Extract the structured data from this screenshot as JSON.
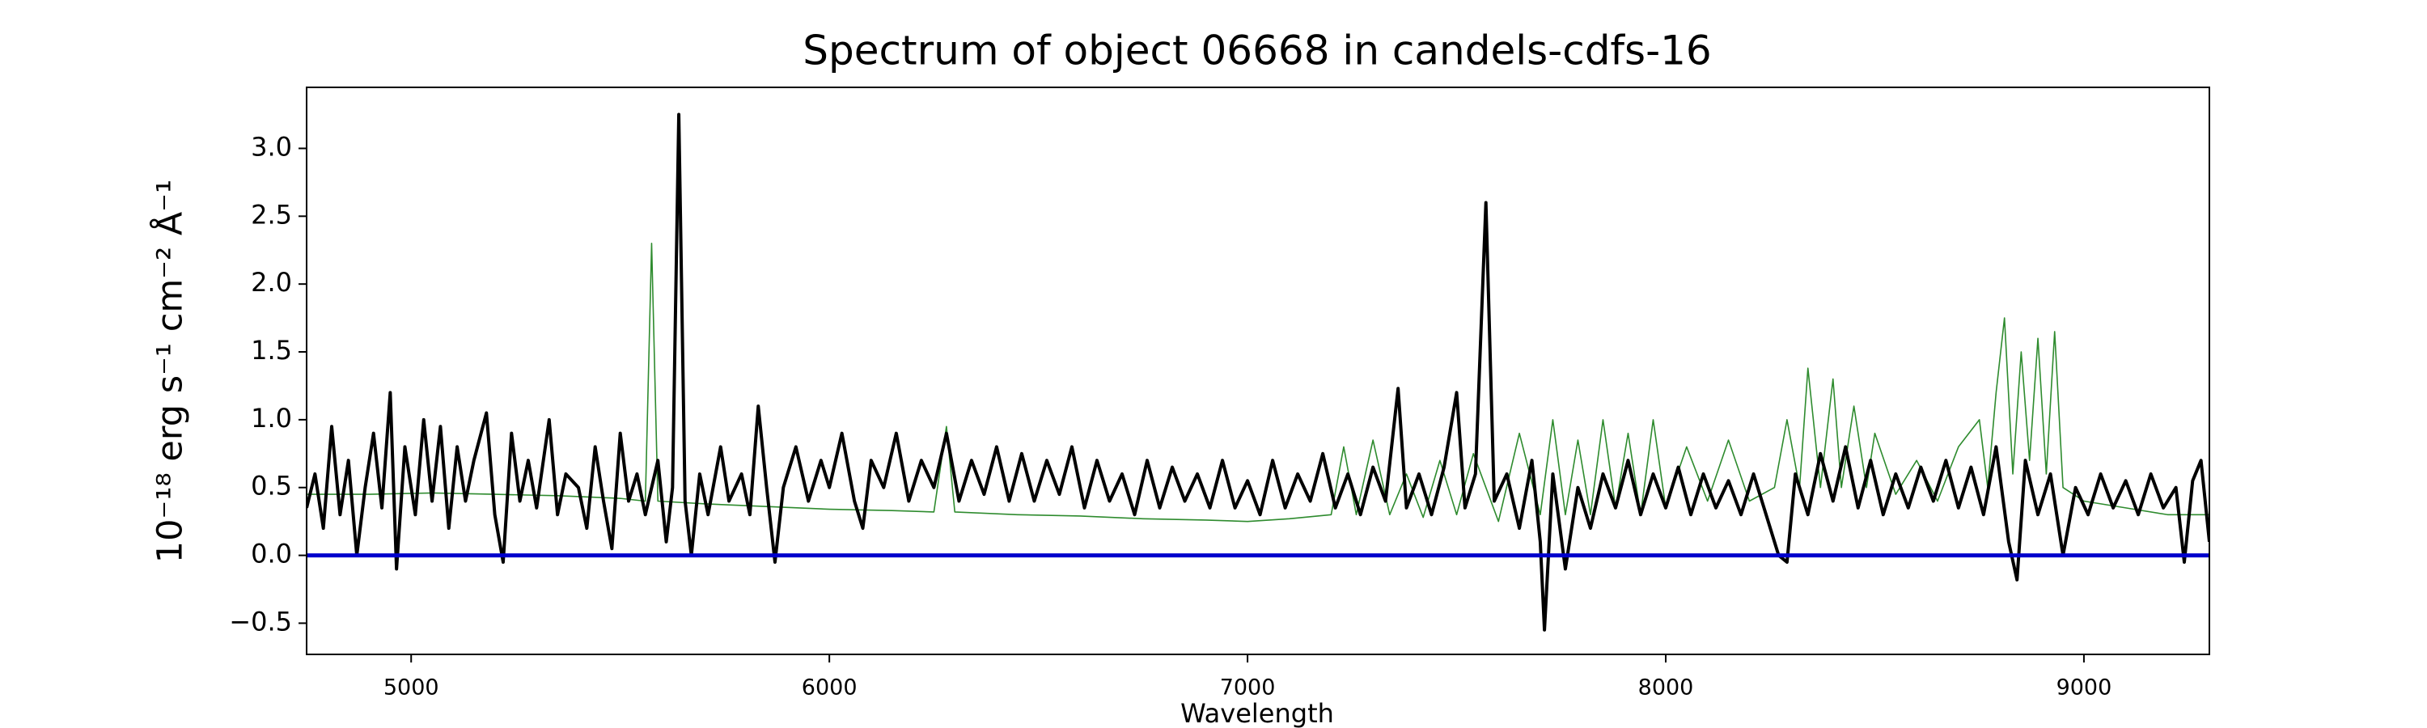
{
  "chart_data": {
    "type": "line",
    "title": "Spectrum of object 06668 in candels-cdfs-16",
    "xlabel": "Wavelength",
    "ylabel": "10⁻¹⁸ erg s⁻¹ cm⁻² Å⁻¹",
    "xlim": [
      4750,
      9300
    ],
    "ylim": [
      -0.73,
      3.45
    ],
    "xticks": [
      5000,
      6000,
      7000,
      8000,
      9000
    ],
    "yticks": [
      {
        "value": -0.5,
        "label": "−0.5"
      },
      {
        "value": 0,
        "label": "0.0"
      },
      {
        "value": 0.5,
        "label": "0.5"
      },
      {
        "value": 1,
        "label": "1.0"
      },
      {
        "value": 1.5,
        "label": "1.5"
      },
      {
        "value": 2,
        "label": "2.0"
      },
      {
        "value": 2.5,
        "label": "2.5"
      },
      {
        "value": 3,
        "label": "3.0"
      }
    ],
    "hline": {
      "value": 0,
      "color": "#0000cc"
    },
    "series": [
      {
        "color": "#2e8b2e",
        "x": [
          4750,
          4900,
          5050,
          5200,
          5350,
          5500,
          5560,
          5575,
          5590,
          5700,
          5850,
          6000,
          6150,
          6250,
          6280,
          6300,
          6450,
          6600,
          6750,
          6900,
          7000,
          7100,
          7200,
          7230,
          7260,
          7300,
          7340,
          7380,
          7420,
          7460,
          7500,
          7540,
          7600,
          7650,
          7700,
          7730,
          7760,
          7790,
          7820,
          7850,
          7880,
          7910,
          7940,
          7970,
          8000,
          8050,
          8100,
          8150,
          8200,
          8260,
          8290,
          8320,
          8340,
          8370,
          8400,
          8420,
          8450,
          8480,
          8500,
          8550,
          8600,
          8650,
          8700,
          8750,
          8770,
          8790,
          8810,
          8830,
          8850,
          8870,
          8890,
          8910,
          8930,
          8950,
          9000,
          9100,
          9200,
          9300
        ],
        "values": [
          0.45,
          0.45,
          0.46,
          0.45,
          0.44,
          0.42,
          0.4,
          2.3,
          0.4,
          0.38,
          0.36,
          0.34,
          0.33,
          0.32,
          0.95,
          0.32,
          0.3,
          0.29,
          0.27,
          0.26,
          0.25,
          0.27,
          0.3,
          0.8,
          0.3,
          0.85,
          0.3,
          0.6,
          0.28,
          0.7,
          0.3,
          0.75,
          0.25,
          0.9,
          0.3,
          1.0,
          0.3,
          0.85,
          0.3,
          1.0,
          0.35,
          0.9,
          0.3,
          1.0,
          0.35,
          0.8,
          0.4,
          0.85,
          0.4,
          0.5,
          1.0,
          0.5,
          1.38,
          0.5,
          1.3,
          0.5,
          1.1,
          0.5,
          0.9,
          0.45,
          0.7,
          0.4,
          0.8,
          1.0,
          0.5,
          1.2,
          1.75,
          0.6,
          1.5,
          0.7,
          1.6,
          0.6,
          1.65,
          0.5,
          0.4,
          0.35,
          0.3,
          0.3
        ]
      },
      {
        "color": "#000000",
        "x": [
          4750,
          4770,
          4790,
          4810,
          4830,
          4850,
          4870,
          4890,
          4910,
          4930,
          4950,
          4965,
          4985,
          5010,
          5030,
          5050,
          5070,
          5090,
          5110,
          5130,
          5150,
          5180,
          5200,
          5220,
          5240,
          5260,
          5280,
          5300,
          5330,
          5350,
          5370,
          5400,
          5420,
          5440,
          5460,
          5480,
          5500,
          5520,
          5540,
          5560,
          5590,
          5610,
          5625,
          5640,
          5655,
          5670,
          5690,
          5710,
          5740,
          5760,
          5790,
          5810,
          5830,
          5850,
          5870,
          5890,
          5920,
          5950,
          5980,
          6000,
          6030,
          6060,
          6080,
          6100,
          6130,
          6160,
          6190,
          6220,
          6250,
          6280,
          6310,
          6340,
          6370,
          6400,
          6430,
          6460,
          6490,
          6520,
          6550,
          6580,
          6610,
          6640,
          6670,
          6700,
          6730,
          6760,
          6790,
          6820,
          6850,
          6880,
          6910,
          6940,
          6970,
          7000,
          7030,
          7060,
          7090,
          7120,
          7150,
          7180,
          7210,
          7240,
          7270,
          7300,
          7330,
          7360,
          7380,
          7410,
          7440,
          7470,
          7500,
          7520,
          7545,
          7570,
          7590,
          7620,
          7650,
          7680,
          7700,
          7710,
          7730,
          7760,
          7790,
          7820,
          7850,
          7880,
          7910,
          7940,
          7970,
          8000,
          8030,
          8060,
          8090,
          8120,
          8150,
          8180,
          8210,
          8240,
          8270,
          8290,
          8310,
          8340,
          8370,
          8400,
          8430,
          8460,
          8490,
          8520,
          8550,
          8580,
          8610,
          8640,
          8670,
          8700,
          8730,
          8760,
          8790,
          8820,
          8840,
          8860,
          8890,
          8920,
          8950,
          8980,
          9010,
          9040,
          9070,
          9100,
          9130,
          9160,
          9190,
          9220,
          9240,
          9260,
          9280,
          9300
        ],
        "values": [
          0.35,
          0.6,
          0.2,
          0.95,
          0.3,
          0.7,
          0.0,
          0.5,
          0.9,
          0.35,
          1.2,
          -0.1,
          0.8,
          0.3,
          1.0,
          0.4,
          0.95,
          0.2,
          0.8,
          0.4,
          0.7,
          1.05,
          0.3,
          -0.05,
          0.9,
          0.4,
          0.7,
          0.35,
          1.0,
          0.3,
          0.6,
          0.5,
          0.2,
          0.8,
          0.4,
          0.05,
          0.9,
          0.4,
          0.6,
          0.3,
          0.7,
          0.1,
          0.5,
          3.25,
          0.4,
          0.0,
          0.6,
          0.3,
          0.8,
          0.4,
          0.6,
          0.3,
          1.1,
          0.5,
          -0.05,
          0.5,
          0.8,
          0.4,
          0.7,
          0.5,
          0.9,
          0.4,
          0.2,
          0.7,
          0.5,
          0.9,
          0.4,
          0.7,
          0.5,
          0.9,
          0.4,
          0.7,
          0.45,
          0.8,
          0.4,
          0.75,
          0.4,
          0.7,
          0.45,
          0.8,
          0.35,
          0.7,
          0.4,
          0.6,
          0.3,
          0.7,
          0.35,
          0.65,
          0.4,
          0.6,
          0.35,
          0.7,
          0.35,
          0.55,
          0.3,
          0.7,
          0.35,
          0.6,
          0.4,
          0.75,
          0.35,
          0.6,
          0.3,
          0.65,
          0.4,
          1.23,
          0.35,
          0.6,
          0.3,
          0.65,
          1.2,
          0.35,
          0.6,
          2.6,
          0.4,
          0.6,
          0.2,
          0.7,
          0.1,
          -0.55,
          0.6,
          -0.1,
          0.5,
          0.2,
          0.6,
          0.35,
          0.7,
          0.3,
          0.6,
          0.35,
          0.65,
          0.3,
          0.6,
          0.35,
          0.55,
          0.3,
          0.6,
          0.3,
          0.0,
          -0.05,
          0.6,
          0.3,
          0.75,
          0.4,
          0.8,
          0.35,
          0.7,
          0.3,
          0.6,
          0.35,
          0.65,
          0.4,
          0.7,
          0.35,
          0.65,
          0.3,
          0.8,
          0.1,
          -0.18,
          0.7,
          0.3,
          0.6,
          0.0,
          0.5,
          0.3,
          0.6,
          0.35,
          0.55,
          0.3,
          0.6,
          0.35,
          0.5,
          -0.05,
          0.55,
          0.7,
          0.1
        ]
      }
    ]
  }
}
